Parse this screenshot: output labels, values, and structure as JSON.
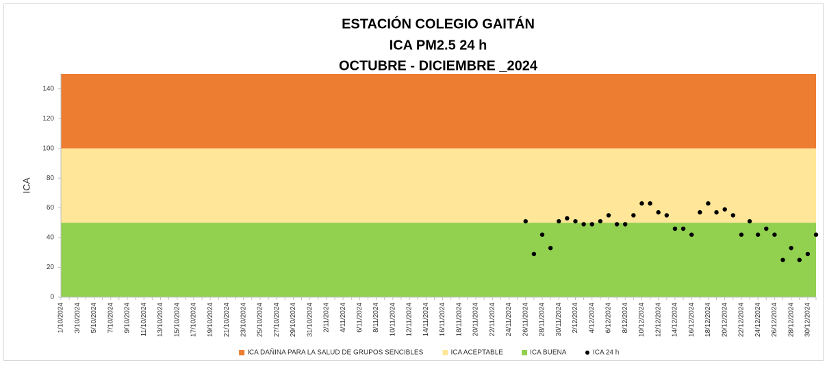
{
  "chart_data": {
    "type": "scatter",
    "title": [
      "ESTACIÓN COLEGIO GAITÁN",
      "ICA PM2.5 24 h",
      "OCTUBRE - DICIEMBRE _2024"
    ],
    "y_label": "ICA",
    "ylim": [
      0,
      150
    ],
    "yticks": [
      0,
      20,
      40,
      60,
      80,
      100,
      120,
      140
    ],
    "bands": [
      {
        "name": "ICA DAÑINA PARA LA SALUD DE GRUPOS SENCIBLES",
        "color": "#ED7D31",
        "value": 50
      },
      {
        "name": "ICA ACEPTABLE",
        "color": "#FFE699",
        "value": 50
      },
      {
        "name": "ICA BUENA",
        "color": "#92D050",
        "value": 50
      }
    ],
    "categories": [
      "1/10/2024",
      null,
      "3/10/2024",
      null,
      "5/10/2024",
      null,
      "7/10/2024",
      null,
      "9/10/2024",
      null,
      "11/10/2024",
      null,
      "13/10/2024",
      null,
      "15/10/2024",
      null,
      "17/10/2024",
      null,
      "19/10/2024",
      null,
      "21/10/2024",
      null,
      "23/10/2024",
      null,
      "25/10/2024",
      null,
      "27/10/2024",
      null,
      "29/10/2024",
      null,
      "31/10/2024",
      null,
      "2/11/2024",
      null,
      "4/11/2024",
      null,
      "6/11/2024",
      null,
      "8/11/2024",
      null,
      "10/11/2024",
      null,
      "12/11/2024",
      null,
      "14/11/2024",
      null,
      "16/11/2024",
      null,
      "18/11/2024",
      null,
      "20/11/2024",
      null,
      "22/11/2024",
      null,
      "24/11/2024",
      null,
      "26/11/2024",
      null,
      "28/11/2024",
      null,
      "30/11/2024",
      null,
      "2/12/2024",
      null,
      "4/12/2024",
      null,
      "6/12/2024",
      null,
      "8/12/2024",
      null,
      "10/12/2024",
      null,
      "12/12/2024",
      null,
      "14/12/2024",
      null,
      "16/12/2024",
      null,
      "18/12/2024",
      null,
      "20/12/2024",
      null,
      "22/12/2024",
      null,
      "24/12/2024",
      null,
      "26/12/2024",
      null,
      "28/12/2024",
      null,
      "30/12/2024",
      null
    ],
    "series": [
      {
        "name": "ICA 24 h",
        "color": "#000000",
        "values": [
          null,
          null,
          null,
          null,
          null,
          null,
          null,
          null,
          null,
          null,
          null,
          null,
          null,
          null,
          null,
          null,
          null,
          null,
          null,
          null,
          null,
          null,
          null,
          null,
          null,
          null,
          null,
          null,
          null,
          null,
          null,
          null,
          null,
          null,
          null,
          null,
          null,
          null,
          null,
          null,
          null,
          null,
          null,
          null,
          null,
          null,
          null,
          null,
          null,
          null,
          null,
          null,
          null,
          null,
          null,
          null,
          51,
          29,
          42,
          33,
          51,
          53,
          51,
          49,
          49,
          51,
          55,
          49,
          49,
          55,
          63,
          63,
          57,
          55,
          46,
          46,
          42,
          57,
          63,
          57,
          59,
          55,
          42,
          51,
          42,
          46,
          42,
          25,
          33,
          25,
          29,
          42
        ]
      }
    ]
  }
}
